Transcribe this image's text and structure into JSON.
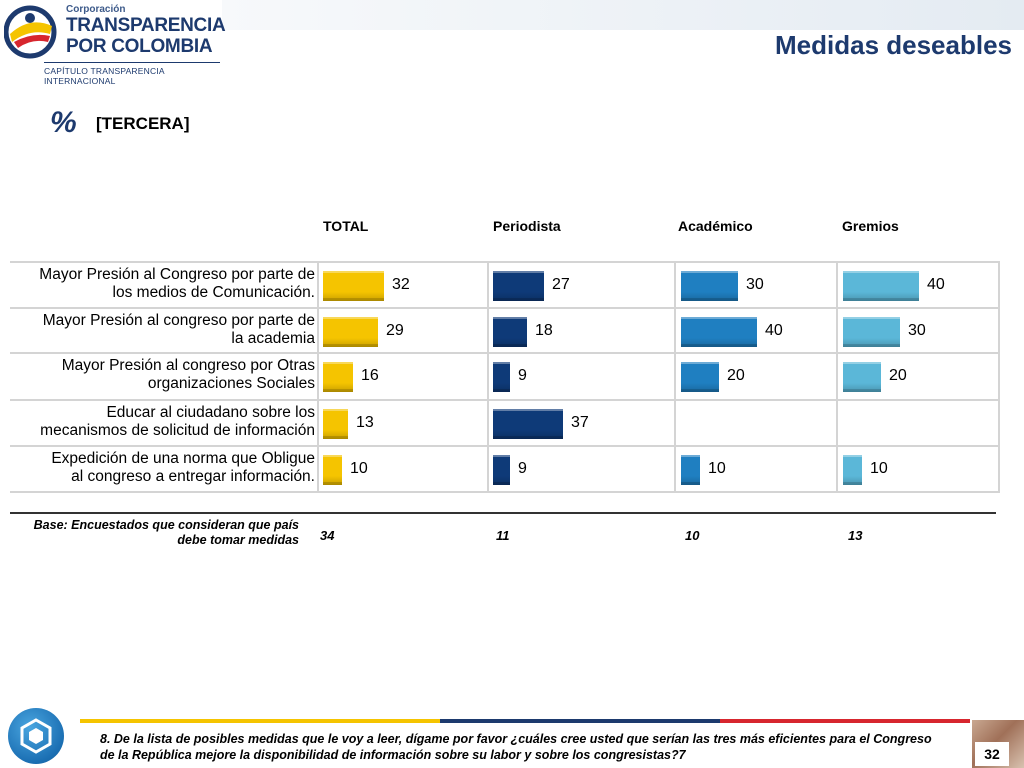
{
  "header": {
    "logo_small": "Corporación",
    "logo_line1": "TRANSPARENCIA",
    "logo_line2": "POR COLOMBIA",
    "logo_sub": "CAPÍTULO TRANSPARENCIA INTERNACIONAL",
    "title": "Medidas deseables"
  },
  "subtitle": {
    "percent_symbol": "%",
    "label": "[TERCERA]"
  },
  "chart_data": {
    "type": "bar",
    "orientation": "horizontal",
    "categories": [
      "Mayor Presión al Congreso por parte de los medios de Comunicación.",
      "Mayor Presión al congreso por parte de la academia",
      "Mayor Presión al congreso por Otras organizaciones Sociales",
      "Educar al ciudadano sobre los mecanismos de solicitud de información",
      "Expedición de una norma que Obligue al congreso a entregar información."
    ],
    "category_lines": [
      [
        "Mayor Presión al Congreso por parte de",
        "los medios de Comunicación."
      ],
      [
        "Mayor Presión al congreso por parte de",
        "la academia"
      ],
      [
        "Mayor Presión al congreso por Otras",
        "organizaciones Sociales"
      ],
      [
        "Educar al ciudadano sobre los",
        "mecanismos de solicitud de información"
      ],
      [
        "Expedición de una norma que Obligue",
        "al congreso a entregar información."
      ]
    ],
    "series": [
      {
        "name": "TOTAL",
        "color": "#f5c400",
        "values": [
          32,
          29,
          16,
          13,
          10
        ]
      },
      {
        "name": "Periodista",
        "color": "#0e3a78",
        "values": [
          27,
          18,
          9,
          37,
          9
        ]
      },
      {
        "name": "Académico",
        "color": "#1f7fc1",
        "values": [
          30,
          40,
          20,
          null,
          10
        ]
      },
      {
        "name": "Gremios",
        "color": "#5bb7d8",
        "values": [
          40,
          30,
          20,
          null,
          10
        ]
      }
    ],
    "base": {
      "label": "Base: Encuestados que consideran que país debe tomar medidas",
      "values": [
        "34",
        "11",
        "10",
        "13"
      ]
    }
  },
  "footer": {
    "question": "8. De la lista de posibles medidas que le voy a leer, dígame por favor ¿cuáles cree usted que serían las tres más eficientes para el Congreso de la República mejore la disponibilidad de información sobre su labor y sobre los congresistas?7",
    "page_number": "32"
  }
}
